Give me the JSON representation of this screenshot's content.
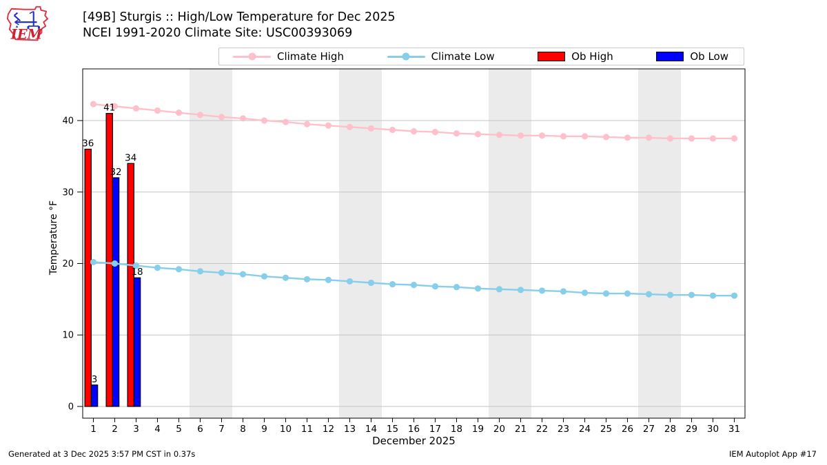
{
  "header": {
    "title_line1": "[49B] Sturgis :: High/Low Temperature for Dec 2025",
    "title_line2": "NCEI 1991-2020 Climate Site: USC00393069",
    "logo_text": "IEM"
  },
  "legend": {
    "items": [
      {
        "label": "Climate High",
        "marker": "line-dot",
        "color": "#ffc0cb"
      },
      {
        "label": "Climate Low",
        "marker": "line-dot",
        "color": "#87ceeb"
      },
      {
        "label": "Ob High",
        "marker": "filled-box",
        "color": "#ff0000"
      },
      {
        "label": "Ob Low",
        "marker": "filled-box",
        "color": "#0000ff"
      }
    ]
  },
  "footer": {
    "generated": "Generated at 3 Dec 2025 3:57 PM CST in 0.37s",
    "app": "IEM Autoplot App #17"
  },
  "chart_data": {
    "type": "line+bar",
    "title": "[49B] Sturgis :: High/Low Temperature for Dec 2025",
    "subtitle": "NCEI 1991-2020 Climate Site: USC00393069",
    "xlabel": "December 2025",
    "ylabel": "Temperature °F",
    "x": [
      1,
      2,
      3,
      4,
      5,
      6,
      7,
      8,
      9,
      10,
      11,
      12,
      13,
      14,
      15,
      16,
      17,
      18,
      19,
      20,
      21,
      22,
      23,
      24,
      25,
      26,
      27,
      28,
      29,
      30,
      31
    ],
    "xlim": [
      0.5,
      31.5
    ],
    "ylim": [
      -1.64,
      47.23
    ],
    "yticks": [
      0,
      10,
      20,
      30,
      40
    ],
    "grid": "horizontal",
    "weekend_shading_days": [
      [
        6,
        7
      ],
      [
        13,
        14
      ],
      [
        20,
        21
      ],
      [
        27,
        28
      ]
    ],
    "shade_color": "#ebebeb",
    "grid_color": "#c3c3c3",
    "series": [
      {
        "name": "Climate High",
        "type": "line",
        "color": "#ffc0cb",
        "marker": "circle",
        "values": [
          42.3,
          42.0,
          41.7,
          41.4,
          41.1,
          40.8,
          40.5,
          40.3,
          40.0,
          39.8,
          39.5,
          39.3,
          39.1,
          38.9,
          38.7,
          38.5,
          38.4,
          38.2,
          38.1,
          38.0,
          37.9,
          37.9,
          37.8,
          37.8,
          37.7,
          37.6,
          37.6,
          37.5,
          37.5,
          37.5,
          37.5
        ]
      },
      {
        "name": "Climate Low",
        "type": "line",
        "color": "#87ceeb",
        "marker": "circle",
        "values": [
          20.2,
          20.0,
          19.7,
          19.4,
          19.2,
          18.9,
          18.7,
          18.5,
          18.2,
          18.0,
          17.8,
          17.7,
          17.5,
          17.3,
          17.1,
          17.0,
          16.8,
          16.7,
          16.5,
          16.4,
          16.3,
          16.2,
          16.1,
          15.9,
          15.8,
          15.8,
          15.7,
          15.6,
          15.6,
          15.5,
          15.5
        ]
      },
      {
        "name": "Ob High",
        "type": "bar",
        "color": "#ff0000",
        "edge_color": "#000000",
        "bar_span_days": [
          -0.4,
          -0.1
        ],
        "show_value_labels": true,
        "points": [
          {
            "day": 1,
            "value": 36
          },
          {
            "day": 2,
            "value": 41
          },
          {
            "day": 3,
            "value": 34
          }
        ]
      },
      {
        "name": "Ob Low",
        "type": "bar",
        "color": "#0000ff",
        "edge_color": "#000000",
        "bar_span_days": [
          -0.1,
          0.2
        ],
        "show_value_labels": true,
        "points": [
          {
            "day": 1,
            "value": 3
          },
          {
            "day": 2,
            "value": 32
          },
          {
            "day": 3,
            "value": 18
          }
        ]
      }
    ]
  }
}
